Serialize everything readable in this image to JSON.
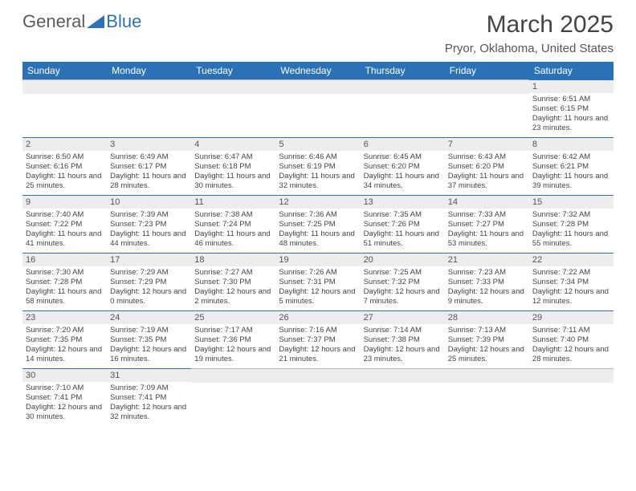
{
  "logo": {
    "word1": "General",
    "word2": "Blue",
    "tri_color": "#2a72b5",
    "text_color": "#5a5a5a"
  },
  "title": "March 2025",
  "subtitle": "Pryor, Oklahoma, United States",
  "colors": {
    "header_bg": "#2a72b5",
    "header_text": "#ffffff",
    "daybar_bg": "#ededed",
    "daybar_border": "#2a72b5",
    "body_text": "#444444"
  },
  "day_labels": [
    "Sunday",
    "Monday",
    "Tuesday",
    "Wednesday",
    "Thursday",
    "Friday",
    "Saturday"
  ],
  "calendar": {
    "first_weekday_index": 6,
    "num_days": 31,
    "days": {
      "1": {
        "sunrise": "6:51 AM",
        "sunset": "6:15 PM",
        "dl_h": 11,
        "dl_m": 23
      },
      "2": {
        "sunrise": "6:50 AM",
        "sunset": "6:16 PM",
        "dl_h": 11,
        "dl_m": 25
      },
      "3": {
        "sunrise": "6:49 AM",
        "sunset": "6:17 PM",
        "dl_h": 11,
        "dl_m": 28
      },
      "4": {
        "sunrise": "6:47 AM",
        "sunset": "6:18 PM",
        "dl_h": 11,
        "dl_m": 30
      },
      "5": {
        "sunrise": "6:46 AM",
        "sunset": "6:19 PM",
        "dl_h": 11,
        "dl_m": 32
      },
      "6": {
        "sunrise": "6:45 AM",
        "sunset": "6:20 PM",
        "dl_h": 11,
        "dl_m": 34
      },
      "7": {
        "sunrise": "6:43 AM",
        "sunset": "6:20 PM",
        "dl_h": 11,
        "dl_m": 37
      },
      "8": {
        "sunrise": "6:42 AM",
        "sunset": "6:21 PM",
        "dl_h": 11,
        "dl_m": 39
      },
      "9": {
        "sunrise": "7:40 AM",
        "sunset": "7:22 PM",
        "dl_h": 11,
        "dl_m": 41
      },
      "10": {
        "sunrise": "7:39 AM",
        "sunset": "7:23 PM",
        "dl_h": 11,
        "dl_m": 44
      },
      "11": {
        "sunrise": "7:38 AM",
        "sunset": "7:24 PM",
        "dl_h": 11,
        "dl_m": 46
      },
      "12": {
        "sunrise": "7:36 AM",
        "sunset": "7:25 PM",
        "dl_h": 11,
        "dl_m": 48
      },
      "13": {
        "sunrise": "7:35 AM",
        "sunset": "7:26 PM",
        "dl_h": 11,
        "dl_m": 51
      },
      "14": {
        "sunrise": "7:33 AM",
        "sunset": "7:27 PM",
        "dl_h": 11,
        "dl_m": 53
      },
      "15": {
        "sunrise": "7:32 AM",
        "sunset": "7:28 PM",
        "dl_h": 11,
        "dl_m": 55
      },
      "16": {
        "sunrise": "7:30 AM",
        "sunset": "7:28 PM",
        "dl_h": 11,
        "dl_m": 58
      },
      "17": {
        "sunrise": "7:29 AM",
        "sunset": "7:29 PM",
        "dl_h": 12,
        "dl_m": 0
      },
      "18": {
        "sunrise": "7:27 AM",
        "sunset": "7:30 PM",
        "dl_h": 12,
        "dl_m": 2
      },
      "19": {
        "sunrise": "7:26 AM",
        "sunset": "7:31 PM",
        "dl_h": 12,
        "dl_m": 5
      },
      "20": {
        "sunrise": "7:25 AM",
        "sunset": "7:32 PM",
        "dl_h": 12,
        "dl_m": 7
      },
      "21": {
        "sunrise": "7:23 AM",
        "sunset": "7:33 PM",
        "dl_h": 12,
        "dl_m": 9
      },
      "22": {
        "sunrise": "7:22 AM",
        "sunset": "7:34 PM",
        "dl_h": 12,
        "dl_m": 12
      },
      "23": {
        "sunrise": "7:20 AM",
        "sunset": "7:35 PM",
        "dl_h": 12,
        "dl_m": 14
      },
      "24": {
        "sunrise": "7:19 AM",
        "sunset": "7:35 PM",
        "dl_h": 12,
        "dl_m": 16
      },
      "25": {
        "sunrise": "7:17 AM",
        "sunset": "7:36 PM",
        "dl_h": 12,
        "dl_m": 19
      },
      "26": {
        "sunrise": "7:16 AM",
        "sunset": "7:37 PM",
        "dl_h": 12,
        "dl_m": 21
      },
      "27": {
        "sunrise": "7:14 AM",
        "sunset": "7:38 PM",
        "dl_h": 12,
        "dl_m": 23
      },
      "28": {
        "sunrise": "7:13 AM",
        "sunset": "7:39 PM",
        "dl_h": 12,
        "dl_m": 25
      },
      "29": {
        "sunrise": "7:11 AM",
        "sunset": "7:40 PM",
        "dl_h": 12,
        "dl_m": 28
      },
      "30": {
        "sunrise": "7:10 AM",
        "sunset": "7:41 PM",
        "dl_h": 12,
        "dl_m": 30
      },
      "31": {
        "sunrise": "7:09 AM",
        "sunset": "7:41 PM",
        "dl_h": 12,
        "dl_m": 32
      }
    }
  },
  "labels": {
    "sunrise": "Sunrise:",
    "sunset": "Sunset:",
    "daylight_prefix": "Daylight:",
    "hours_word": "hours",
    "and_word": "and",
    "minutes_word": "minutes."
  }
}
